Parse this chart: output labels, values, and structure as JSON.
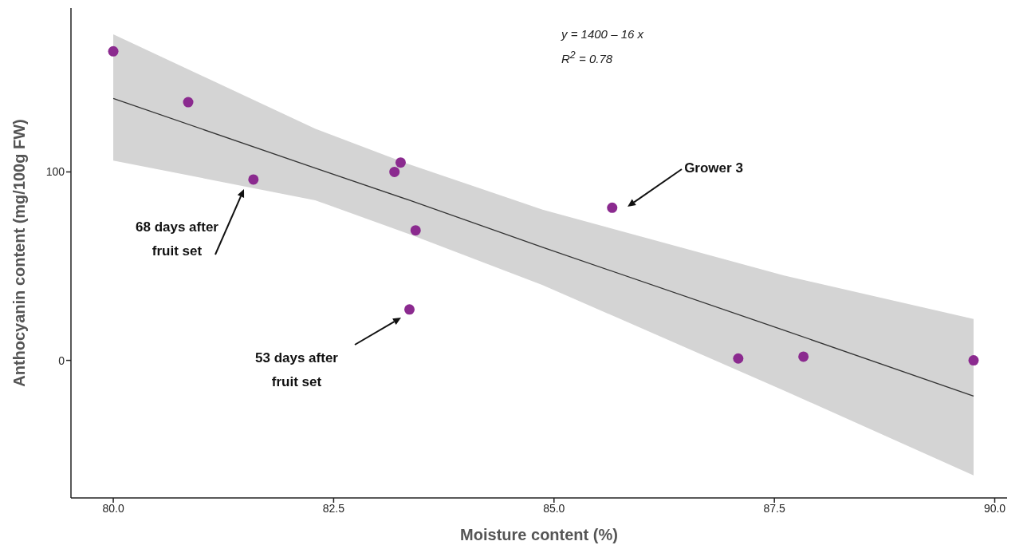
{
  "chart_data": {
    "type": "scatter",
    "xlabel": "Moisture content (%)",
    "ylabel": "Anthocyanin content (mg/100g FW)",
    "xlim": [
      79.52,
      90.14
    ],
    "xticks": [
      {
        "value": 80,
        "label": "80.0"
      },
      {
        "value": 82.5,
        "label": "82.5"
      },
      {
        "value": 85,
        "label": "85.0"
      },
      {
        "value": 87.5,
        "label": "87.5"
      },
      {
        "value": 90,
        "label": "90.0"
      }
    ],
    "ylim": [
      -73,
      187
    ],
    "yticks": [
      0,
      100
    ],
    "grid": false,
    "legend": false,
    "series": [
      {
        "marker": "circle",
        "color": "#8b2a8f",
        "x": [
          80.0,
          80.85,
          81.59,
          83.19,
          83.26,
          83.43,
          83.36,
          85.66,
          87.09,
          87.83,
          89.76
        ],
        "values": [
          164,
          137,
          96,
          100,
          105,
          69,
          27,
          81,
          1,
          2,
          0
        ]
      },
      {
        "type": "line",
        "color": "#333333",
        "x": [
          80.0,
          82.29,
          83.36,
          84.87,
          87.61,
          89.76
        ],
        "values": [
          139,
          102,
          85,
          60,
          16,
          -19
        ],
        "lower": [
          106,
          85,
          67,
          40,
          -16,
          -61
        ],
        "upper": [
          173,
          123,
          104,
          80,
          45,
          22
        ]
      }
    ],
    "annotations": [
      "y = 1400 – 16 x",
      "R$^{2}$ = 0.78",
      "68 days after fruit set",
      "53 days after fruit set",
      "Grower 3"
    ]
  }
}
